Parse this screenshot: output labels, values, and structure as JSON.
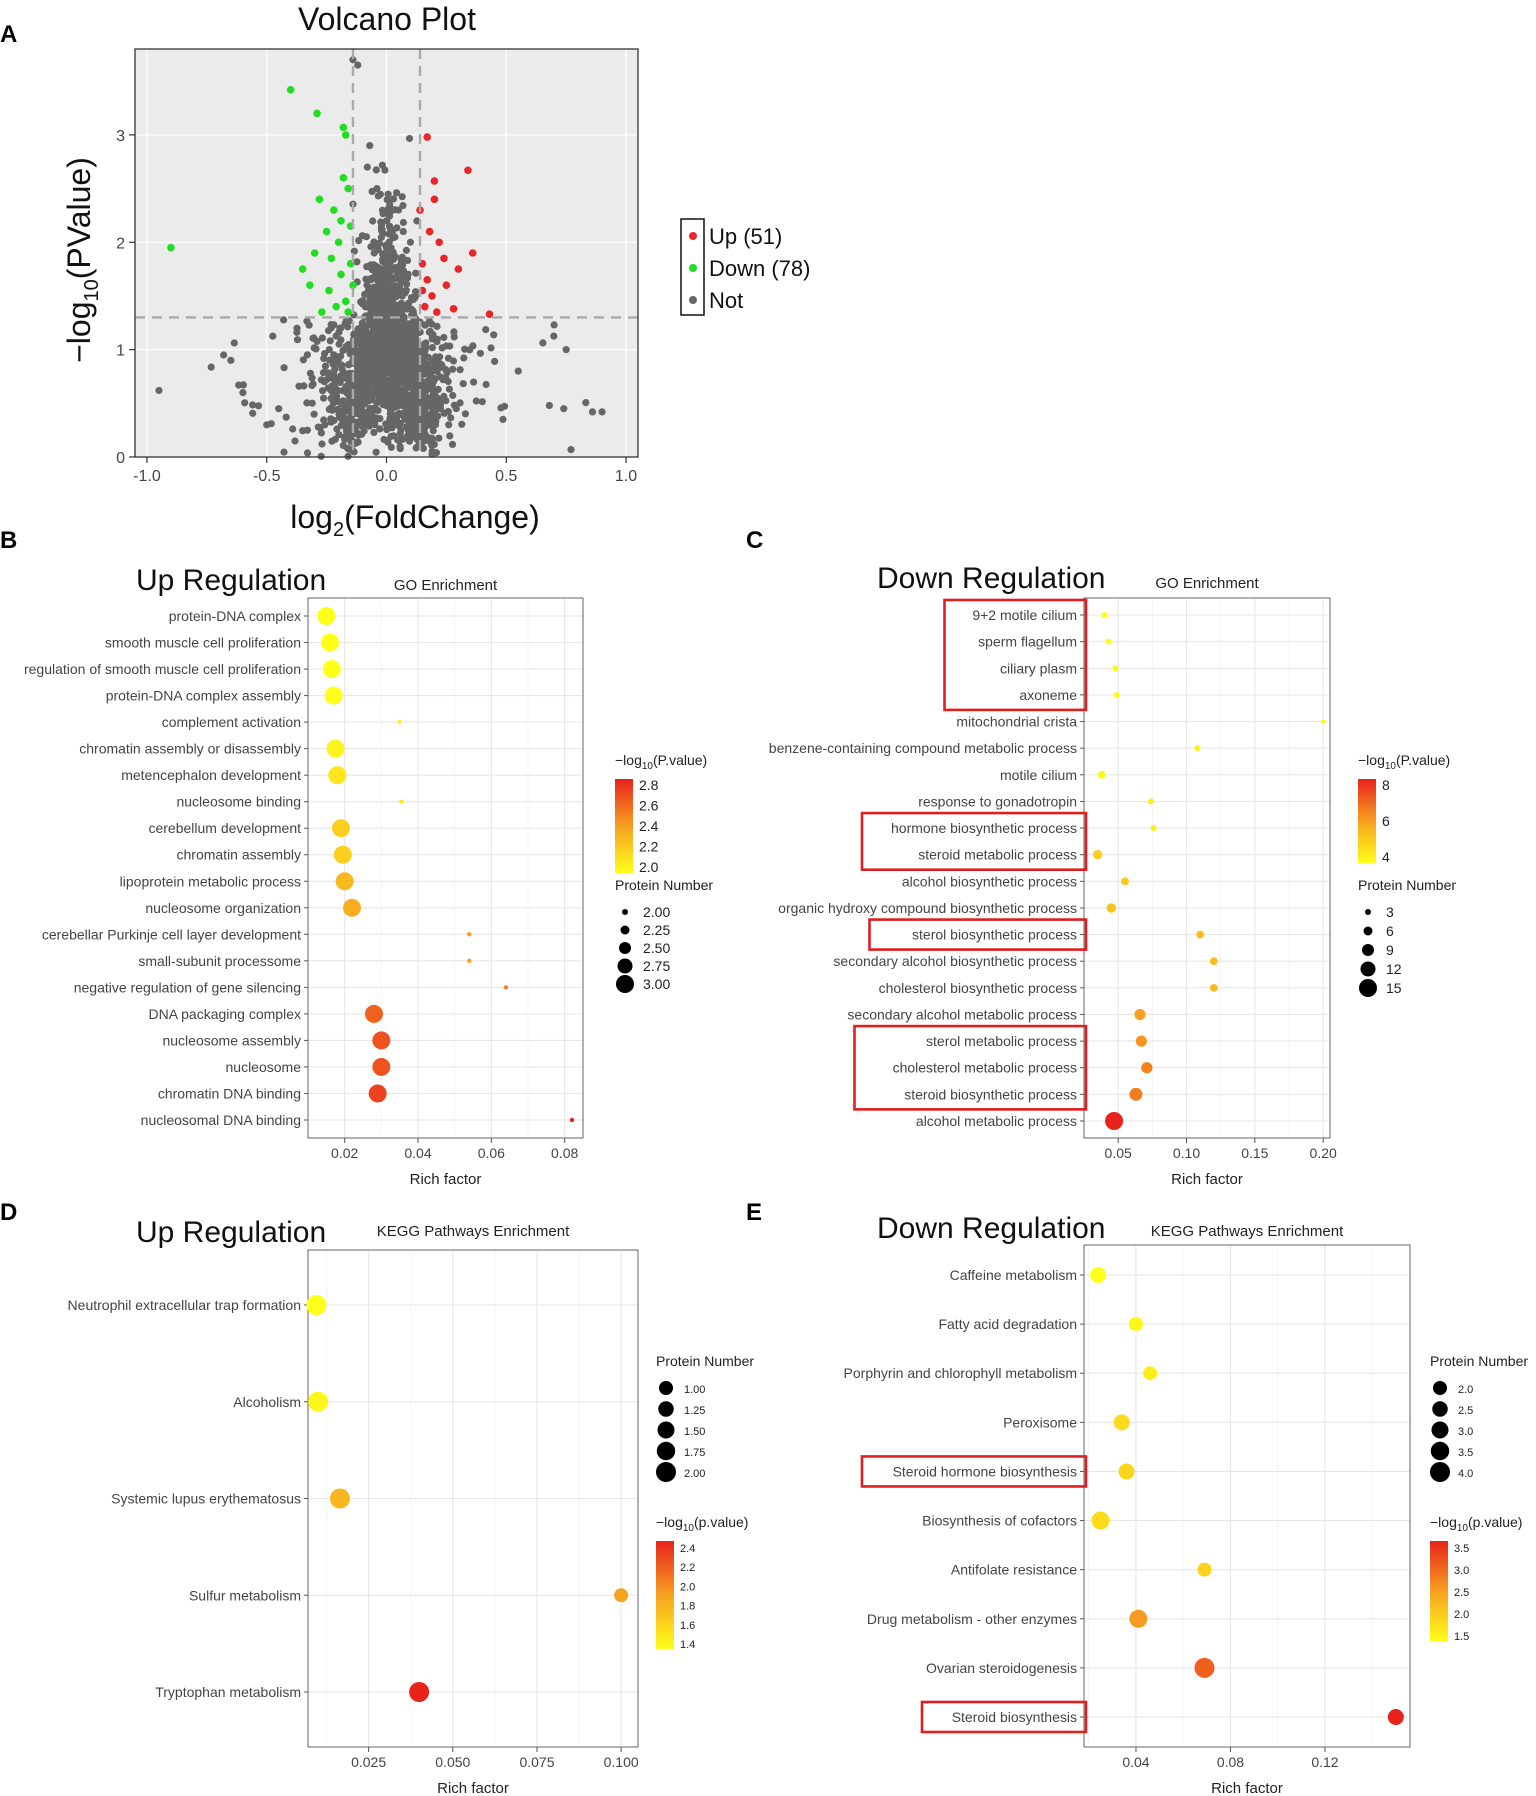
{
  "panels": {
    "A": "A",
    "B": "B",
    "C": "C",
    "D": "D",
    "E": "E"
  },
  "chart_data": [
    {
      "id": "A",
      "type": "scatter",
      "title": "Volcano Plot",
      "xlabel_main": "log",
      "xlabel_sub": "2",
      "xlabel_rest": "(FoldChange)",
      "ylabel_prefix": "−log",
      "ylabel_sub": "10",
      "ylabel_rest": "(PValue)",
      "xlim": [
        -1.05,
        1.05
      ],
      "ylim": [
        0,
        3.8
      ],
      "xticks": [
        -1.0,
        -0.5,
        0.0,
        0.5,
        1.0
      ],
      "xtick_labels": [
        "-1.0",
        "-0.5",
        "0.0",
        "0.5",
        "1.0"
      ],
      "yticks": [
        0,
        1,
        2,
        3
      ],
      "ytick_labels": [
        "0",
        "1",
        "2",
        "3"
      ],
      "thresholds": {
        "fc": [
          -0.14,
          0.14
        ],
        "p": 1.3
      },
      "legend": [
        {
          "label": "Up (51)",
          "color": "#e8262a"
        },
        {
          "label": "Down (78)",
          "color": "#22dd22"
        },
        {
          "label": "Not",
          "color": "#666666"
        }
      ],
      "colors": {
        "up": "#e8262a",
        "down": "#22dd22",
        "not": "#666666"
      },
      "highlight_points": {
        "down": [
          [
            -0.4,
            3.42
          ],
          [
            -0.29,
            3.2
          ],
          [
            -0.18,
            3.07
          ],
          [
            -0.17,
            3.0
          ],
          [
            -0.28,
            2.4
          ],
          [
            -0.18,
            2.6
          ],
          [
            -0.16,
            2.5
          ],
          [
            -0.22,
            2.3
          ],
          [
            -0.25,
            2.1
          ],
          [
            -0.3,
            1.9
          ],
          [
            -0.2,
            2.0
          ],
          [
            -0.15,
            1.8
          ],
          [
            -0.35,
            1.75
          ],
          [
            -0.32,
            1.6
          ],
          [
            -0.24,
            1.55
          ],
          [
            -0.19,
            1.7
          ],
          [
            -0.17,
            1.45
          ],
          [
            -0.21,
            1.4
          ],
          [
            -0.27,
            1.35
          ],
          [
            -0.16,
            1.35
          ],
          [
            -0.9,
            1.95
          ],
          [
            -0.23,
            1.85
          ],
          [
            -0.19,
            2.2
          ],
          [
            -0.15,
            2.15
          ],
          [
            -0.14,
            1.6
          ]
        ],
        "up": [
          [
            0.17,
            2.98
          ],
          [
            0.34,
            2.67
          ],
          [
            0.2,
            2.57
          ],
          [
            0.2,
            2.4
          ],
          [
            0.14,
            2.3
          ],
          [
            0.18,
            2.1
          ],
          [
            0.22,
            2.0
          ],
          [
            0.36,
            1.9
          ],
          [
            0.15,
            1.8
          ],
          [
            0.3,
            1.75
          ],
          [
            0.25,
            1.6
          ],
          [
            0.19,
            1.5
          ],
          [
            0.16,
            1.4
          ],
          [
            0.28,
            1.38
          ],
          [
            0.43,
            1.33
          ],
          [
            0.21,
            1.35
          ],
          [
            0.15,
            1.55
          ],
          [
            0.24,
            1.85
          ],
          [
            0.17,
            1.65
          ]
        ]
      }
    },
    {
      "id": "B",
      "type": "scatter",
      "heading": "Up Regulation",
      "title": "GO Enrichment",
      "xlabel": "Rich factor",
      "categories": [
        "protein-DNA complex",
        "smooth muscle cell proliferation",
        "regulation of smooth muscle cell proliferation",
        "protein-DNA complex assembly",
        "complement activation",
        "chromatin assembly or disassembly",
        "metencephalon development",
        "nucleosome binding",
        "cerebellum development",
        "chromatin assembly",
        "lipoprotein metabolic process",
        "nucleosome organization",
        "cerebellar Purkinje cell layer development",
        "small-subunit processome",
        "negative regulation of gene silencing",
        "DNA packaging complex",
        "nucleosome assembly",
        "nucleosome",
        "chromatin DNA binding",
        "nucleosomal DNA binding"
      ],
      "x": [
        0.015,
        0.016,
        0.0165,
        0.017,
        0.035,
        0.0175,
        0.018,
        0.0355,
        0.019,
        0.0195,
        0.02,
        0.022,
        0.054,
        0.054,
        0.064,
        0.028,
        0.03,
        0.03,
        0.029,
        0.082
      ],
      "size": [
        3,
        3,
        3,
        3,
        2,
        3,
        3,
        2,
        3,
        3,
        3,
        3,
        2,
        2,
        2,
        3,
        3,
        3,
        3,
        2
      ],
      "pvalue_log": [
        2.0,
        2.0,
        2.0,
        2.0,
        2.05,
        2.05,
        2.1,
        2.1,
        2.2,
        2.2,
        2.3,
        2.35,
        2.4,
        2.4,
        2.5,
        2.6,
        2.65,
        2.65,
        2.7,
        2.8
      ],
      "xlim": [
        0.01,
        0.085
      ],
      "xticks": [
        0.02,
        0.04,
        0.06,
        0.08
      ],
      "xtick_labels": [
        "0.02",
        "0.04",
        "0.06",
        "0.08"
      ],
      "color_range": [
        2.0,
        2.8
      ],
      "legend_color_title_prefix": "−log",
      "legend_color_title_sub": "10",
      "legend_color_title_rest": "(P.value)",
      "legend_color_ticks": [
        "2.8",
        "2.6",
        "2.4",
        "2.2",
        "2.0"
      ],
      "legend_size_title": "Protein Number",
      "legend_size_labels": [
        "2.00",
        "2.25",
        "2.50",
        "2.75",
        "3.00"
      ],
      "highlight": []
    },
    {
      "id": "C",
      "type": "scatter",
      "heading": "Down Regulation",
      "title": "GO Enrichment",
      "xlabel": "Rich factor",
      "categories": [
        "9+2 motile cilium",
        "sperm flagellum",
        "ciliary plasm",
        "axoneme",
        "mitochondrial crista",
        "benzene-containing compound metabolic process",
        "motile cilium",
        "response to gonadotropin",
        "hormone biosynthetic process",
        "steroid metabolic process",
        "alcohol biosynthetic process",
        "organic hydroxy compound biosynthetic process",
        "sterol biosynthetic process",
        "secondary alcohol biosynthetic process",
        "cholesterol biosynthetic process",
        "secondary alcohol metabolic process",
        "sterol metabolic process",
        "cholesterol metabolic process",
        "steroid biosynthetic process",
        "alcohol metabolic process"
      ],
      "x": [
        0.04,
        0.043,
        0.048,
        0.049,
        0.2,
        0.108,
        0.038,
        0.074,
        0.076,
        0.035,
        0.055,
        0.045,
        0.11,
        0.12,
        0.12,
        0.066,
        0.067,
        0.071,
        0.063,
        0.047
      ],
      "size": [
        4,
        4,
        4,
        4,
        3,
        4,
        5,
        4,
        4,
        6,
        5,
        6,
        5,
        5,
        5,
        7,
        7,
        7,
        8,
        11
      ],
      "pvalue_log": [
        3.6,
        3.7,
        3.7,
        3.7,
        3.8,
        3.9,
        3.8,
        4.0,
        4.0,
        5.0,
        5.2,
        5.4,
        5.6,
        5.6,
        5.7,
        6.5,
        6.7,
        7.2,
        7.4,
        9.5
      ],
      "xlim": [
        0.025,
        0.205
      ],
      "xticks": [
        0.05,
        0.1,
        0.15,
        0.2
      ],
      "xtick_labels": [
        "0.05",
        "0.10",
        "0.15",
        "0.20"
      ],
      "color_range": [
        3.5,
        9.5
      ],
      "legend_color_title_prefix": "−log",
      "legend_color_title_sub": "10",
      "legend_color_title_rest": "(P.value)",
      "legend_color_ticks": [
        "8",
        "6",
        "4"
      ],
      "legend_size_title": "Protein Number",
      "legend_size_labels": [
        "3",
        "6",
        "9",
        "12",
        "15"
      ],
      "highlight": [
        [
          0,
          3
        ],
        [
          8,
          9
        ],
        [
          12,
          12
        ],
        [
          16,
          18
        ]
      ]
    },
    {
      "id": "D",
      "type": "scatter",
      "heading": "Up Regulation",
      "title": "KEGG Pathways Enrichment",
      "xlabel": "Rich factor",
      "categories": [
        "Neutrophil extracellular trap formation",
        "Alcoholism",
        "Systemic lupus erythematosus",
        "Sulfur metabolism",
        "Tryptophan metabolism"
      ],
      "x": [
        0.0095,
        0.01,
        0.0165,
        0.1,
        0.04
      ],
      "size": [
        2,
        2,
        2,
        1,
        2
      ],
      "pvalue_log": [
        1.4,
        1.45,
        1.8,
        1.9,
        2.45
      ],
      "xlim": [
        0.007,
        0.105
      ],
      "xticks": [
        0.025,
        0.05,
        0.075,
        0.1
      ],
      "xtick_labels": [
        "0.025",
        "0.050",
        "0.075",
        "0.100"
      ],
      "color_range": [
        1.4,
        2.45
      ],
      "legend_size_title": "Protein Number",
      "legend_size_labels": [
        "1.00",
        "1.25",
        "1.50",
        "1.75",
        "2.00"
      ],
      "legend_color_title_prefix": "−log",
      "legend_color_title_sub": "10",
      "legend_color_title_rest": "(p.value)",
      "legend_color_ticks": [
        "2.4",
        "2.2",
        "2.0",
        "1.8",
        "1.6",
        "1.4"
      ],
      "highlight": []
    },
    {
      "id": "E",
      "type": "scatter",
      "heading": "Down Regulation",
      "title": "KEGG Pathways Enrichment",
      "xlabel": "Rich factor",
      "categories": [
        "Caffeine metabolism",
        "Fatty acid degradation",
        "Porphyrin and chlorophyll metabolism",
        "Peroxisome",
        "Steroid hormone biosynthesis",
        "Biosynthesis of cofactors",
        "Antifolate resistance",
        "Drug metabolism - other enzymes",
        "Ovarian steroidogenesis",
        "Steroid biosynthesis"
      ],
      "x": [
        0.024,
        0.04,
        0.046,
        0.034,
        0.036,
        0.025,
        0.069,
        0.041,
        0.069,
        0.15
      ],
      "size": [
        3,
        2.5,
        2.5,
        3,
        3,
        3.5,
        2.5,
        3.5,
        4,
        3
      ],
      "pvalue_log": [
        1.5,
        1.6,
        1.7,
        1.9,
        1.95,
        1.9,
        2.0,
        2.6,
        3.1,
        3.6
      ],
      "xlim": [
        0.018,
        0.156
      ],
      "xticks": [
        0.04,
        0.08,
        0.12
      ],
      "xtick_labels": [
        "0.04",
        "0.08",
        "0.12"
      ],
      "color_range": [
        1.5,
        3.6
      ],
      "legend_size_title": "Protein Number",
      "legend_size_labels": [
        "2.0",
        "2.5",
        "3.0",
        "3.5",
        "4.0"
      ],
      "legend_color_title_prefix": "−log",
      "legend_color_title_sub": "10",
      "legend_color_title_rest": "(p.value)",
      "legend_color_ticks": [
        "3.5",
        "3.0",
        "2.5",
        "2.0",
        "1.5"
      ],
      "highlight": [
        [
          4,
          4
        ],
        [
          9,
          9
        ]
      ]
    }
  ]
}
